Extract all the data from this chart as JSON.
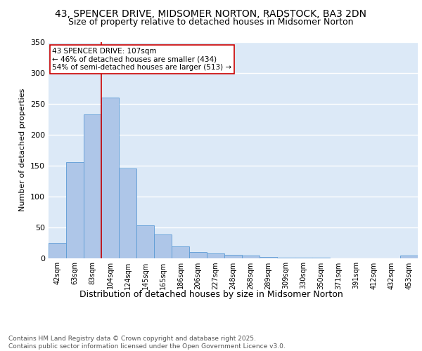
{
  "title1": "43, SPENCER DRIVE, MIDSOMER NORTON, RADSTOCK, BA3 2DN",
  "title2": "Size of property relative to detached houses in Midsomer Norton",
  "xlabel": "Distribution of detached houses by size in Midsomer Norton",
  "ylabel": "Number of detached properties",
  "categories": [
    "42sqm",
    "63sqm",
    "83sqm",
    "104sqm",
    "124sqm",
    "145sqm",
    "165sqm",
    "186sqm",
    "206sqm",
    "227sqm",
    "248sqm",
    "268sqm",
    "289sqm",
    "309sqm",
    "330sqm",
    "350sqm",
    "371sqm",
    "391sqm",
    "412sqm",
    "432sqm",
    "453sqm"
  ],
  "values": [
    25,
    155,
    233,
    260,
    145,
    53,
    38,
    19,
    10,
    7,
    5,
    4,
    2,
    1,
    1,
    1,
    0,
    0,
    0,
    0,
    4
  ],
  "bar_color": "#aec6e8",
  "bar_edge_color": "#5b9bd5",
  "vline_index": 3,
  "vline_color": "#cc0000",
  "annotation_text": "43 SPENCER DRIVE: 107sqm\n← 46% of detached houses are smaller (434)\n54% of semi-detached houses are larger (513) →",
  "annotation_box_color": "#ffffff",
  "annotation_box_edge": "#cc0000",
  "bg_color": "#dce9f7",
  "grid_color": "#ffffff",
  "footnote": "Contains HM Land Registry data © Crown copyright and database right 2025.\nContains public sector information licensed under the Open Government Licence v3.0.",
  "ylim": [
    0,
    350
  ],
  "title1_fontsize": 10,
  "title2_fontsize": 9,
  "xlabel_fontsize": 9,
  "ylabel_fontsize": 8,
  "tick_fontsize": 7,
  "footnote_fontsize": 6.5,
  "annot_fontsize": 7.5
}
